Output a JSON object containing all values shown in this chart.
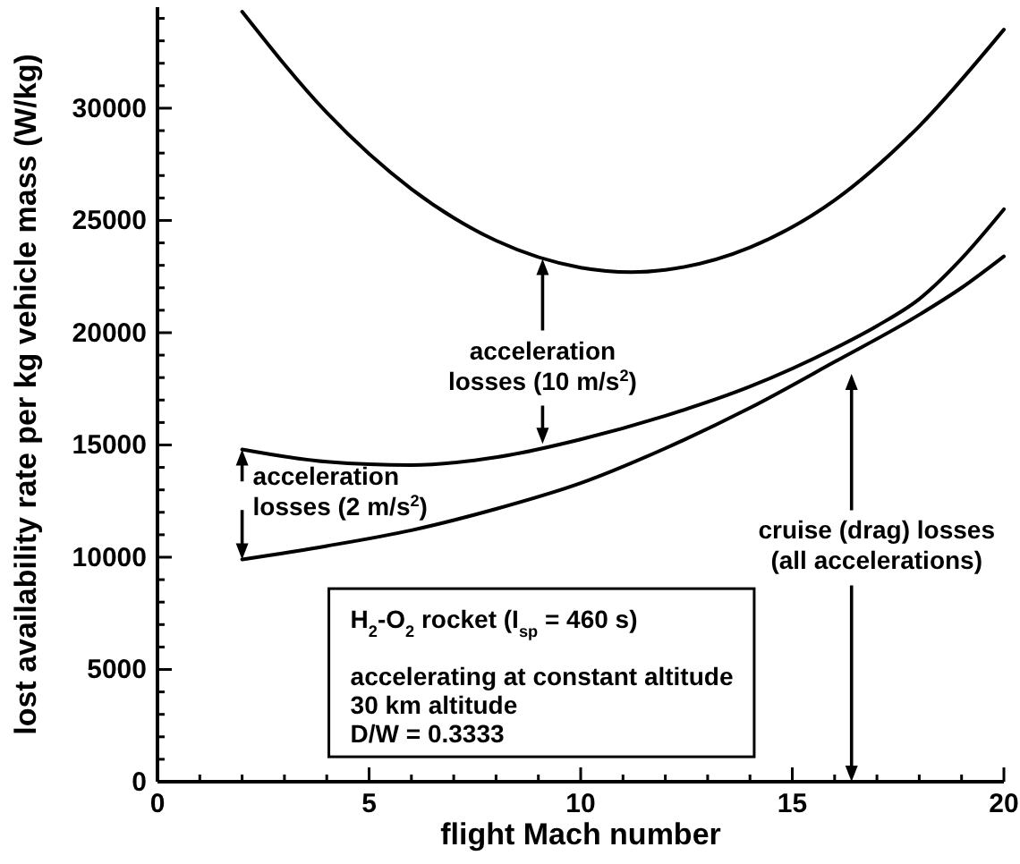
{
  "chart_data": {
    "type": "line",
    "xlabel": "flight Mach number",
    "ylabel": "lost availability rate per kg vehicle mass (W/kg)",
    "xlim": [
      0,
      20
    ],
    "ylim": [
      0,
      34500
    ],
    "xticks": [
      0,
      {
        "value": 1,
        "label": null
      },
      {
        "value": 2,
        "label": null
      },
      {
        "value": 3,
        "label": null
      },
      {
        "value": 4,
        "label": null
      },
      5,
      {
        "value": 6,
        "label": null
      },
      {
        "value": 7,
        "label": null
      },
      {
        "value": 8,
        "label": null
      },
      {
        "value": 9,
        "label": null
      },
      10,
      {
        "value": 11,
        "label": null
      },
      {
        "value": 12,
        "label": null
      },
      {
        "value": 13,
        "label": null
      },
      {
        "value": 14,
        "label": null
      },
      15,
      {
        "value": 16,
        "label": null
      },
      {
        "value": 17,
        "label": null
      },
      {
        "value": 18,
        "label": null
      },
      {
        "value": 19,
        "label": null
      },
      20
    ],
    "yticks": [
      0,
      {
        "value": 1000,
        "label": null
      },
      {
        "value": 2000,
        "label": null
      },
      {
        "value": 3000,
        "label": null
      },
      {
        "value": 4000,
        "label": null
      },
      5000,
      {
        "value": 6000,
        "label": null
      },
      {
        "value": 7000,
        "label": null
      },
      {
        "value": 8000,
        "label": null
      },
      {
        "value": 9000,
        "label": null
      },
      10000,
      {
        "value": 11000,
        "label": null
      },
      {
        "value": 12000,
        "label": null
      },
      {
        "value": 13000,
        "label": null
      },
      {
        "value": 14000,
        "label": null
      },
      15000,
      {
        "value": 16000,
        "label": null
      },
      {
        "value": 17000,
        "label": null
      },
      {
        "value": 18000,
        "label": null
      },
      {
        "value": 19000,
        "label": null
      },
      20000,
      {
        "value": 21000,
        "label": null
      },
      {
        "value": 22000,
        "label": null
      },
      {
        "value": 23000,
        "label": null
      },
      {
        "value": 24000,
        "label": null
      },
      25000,
      {
        "value": 26000,
        "label": null
      },
      {
        "value": 27000,
        "label": null
      },
      {
        "value": 28000,
        "label": null
      },
      {
        "value": 29000,
        "label": null
      },
      30000,
      {
        "value": 31000,
        "label": null
      },
      {
        "value": 32000,
        "label": null
      },
      {
        "value": 33000,
        "label": null
      },
      {
        "value": 34000,
        "label": null
      }
    ],
    "series": [
      {
        "color": "#000000",
        "x": [
          2,
          4,
          6,
          8,
          10,
          11.2,
          12,
          14,
          16,
          18,
          20
        ],
        "values": [
          34300,
          29800,
          26400,
          24100,
          22900,
          22700,
          22800,
          23800,
          25900,
          29200,
          33500
        ]
      },
      {
        "color": "#000000",
        "x": [
          2,
          4,
          6,
          8,
          10,
          12,
          14,
          16,
          17,
          18,
          19,
          20
        ],
        "values": [
          14800,
          14250,
          14100,
          14450,
          15250,
          16300,
          17600,
          19300,
          20300,
          21500,
          23300,
          25500
        ]
      },
      {
        "color": "#000000",
        "x": [
          2,
          4,
          6,
          8,
          10,
          12,
          14,
          16,
          18,
          19,
          20
        ],
        "values": [
          9900,
          10500,
          11200,
          12150,
          13300,
          14850,
          16650,
          18700,
          20800,
          22000,
          23400
        ]
      }
    ],
    "annotations": [
      "acceleration\nlosses (10 m/s$^{2}$)",
      "acceleration\nlosses (2 m/s$^{2}$)",
      "cruise (drag) losses\n(all accelerations)",
      "H$_{2}$-O$_{2}$ rocket (I$_{sp}$ = 460 s)",
      "accelerating at constant altitude\n30 km altitude\nD/W = 0.3333"
    ]
  }
}
